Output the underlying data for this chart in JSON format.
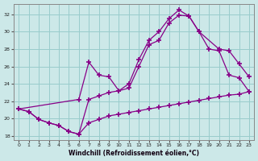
{
  "xlabel": "Windchill (Refroidissement éolien,°C)",
  "background_color": "#cce8e8",
  "grid_color": "#99cccc",
  "line_color": "#880088",
  "xlim": [
    -0.5,
    23.5
  ],
  "ylim": [
    17.5,
    33.2
  ],
  "xticks": [
    0,
    1,
    2,
    3,
    4,
    5,
    6,
    7,
    8,
    9,
    10,
    11,
    12,
    13,
    14,
    15,
    16,
    17,
    18,
    19,
    20,
    21,
    22,
    23
  ],
  "yticks": [
    18,
    20,
    22,
    24,
    26,
    28,
    30,
    32
  ],
  "line1_x": [
    0,
    1,
    2,
    3,
    4,
    5,
    6,
    7,
    8,
    9,
    10,
    11,
    12,
    13,
    14,
    15,
    16,
    17,
    18,
    19,
    20,
    21,
    22,
    23
  ],
  "line1_y": [
    21.1,
    20.8,
    19.9,
    19.5,
    19.2,
    18.5,
    18.2,
    19.5,
    19.9,
    20.3,
    20.5,
    20.7,
    20.9,
    21.1,
    21.3,
    21.5,
    21.7,
    21.9,
    22.1,
    22.3,
    22.5,
    22.7,
    22.8,
    23.1
  ],
  "line2_x": [
    0,
    1,
    2,
    3,
    4,
    5,
    6,
    7,
    8,
    9,
    10,
    11,
    12,
    13,
    14,
    15,
    16,
    17,
    18,
    19,
    20,
    21,
    22,
    23
  ],
  "line2_y": [
    21.1,
    20.8,
    19.9,
    19.5,
    19.2,
    18.5,
    18.2,
    22.2,
    22.6,
    23.0,
    23.2,
    23.5,
    26.0,
    28.5,
    29.0,
    31.0,
    31.9,
    31.8,
    30.0,
    28.0,
    27.8,
    25.0,
    24.7,
    23.1
  ],
  "line3_x": [
    0,
    6,
    7,
    8,
    9,
    10,
    11,
    12,
    13,
    14,
    15,
    16,
    17,
    18,
    20,
    21,
    22,
    23
  ],
  "line3_y": [
    21.1,
    22.2,
    26.5,
    25.0,
    24.8,
    23.2,
    24.0,
    26.8,
    29.0,
    30.0,
    31.5,
    32.5,
    31.8,
    30.0,
    28.0,
    27.8,
    26.3,
    24.8
  ]
}
